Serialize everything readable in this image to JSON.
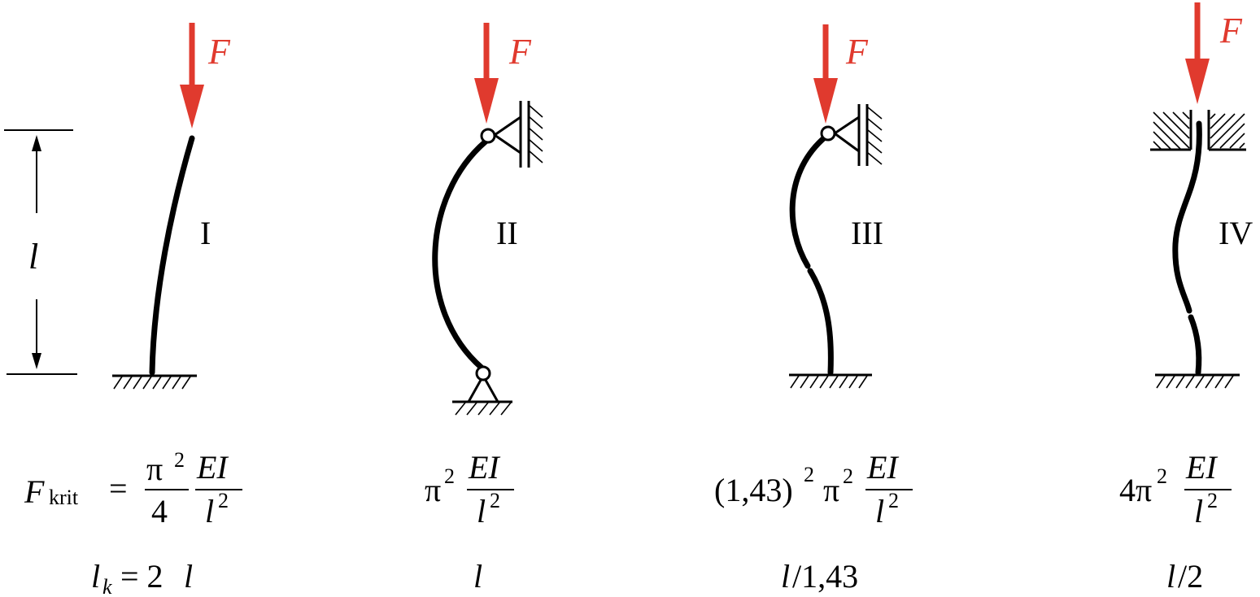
{
  "force_label": "F",
  "length_label": "l",
  "colors": {
    "force": "#e03a2e",
    "ink": "#000000"
  },
  "cases": [
    {
      "id": "I",
      "numeral": "I",
      "formula": {
        "lhs_symbol": "F",
        "lhs_subscript": "krit",
        "equals": "=",
        "coef_num": "π",
        "coef_num_exp": "2",
        "coef_den": "4",
        "frac_num": "EI",
        "frac_den": "l",
        "frac_den_exp": "2"
      },
      "lk": {
        "symbol": "l",
        "subscript": "k",
        "rest": "= 2 ",
        "var": "l"
      }
    },
    {
      "id": "II",
      "numeral": "II",
      "formula": {
        "pi": "π",
        "pi_exp": "2",
        "frac_num": "EI",
        "frac_den": "l",
        "frac_den_exp": "2"
      },
      "lk": {
        "var": "l"
      }
    },
    {
      "id": "III",
      "numeral": "III",
      "formula": {
        "prefix": "(1,43)",
        "prefix_exp": "2",
        "pi": "π",
        "pi_exp": "2",
        "frac_num": "EI",
        "frac_den": "l",
        "frac_den_exp": "2"
      },
      "lk": {
        "var": "l",
        "rest": "/1,43"
      }
    },
    {
      "id": "IV",
      "numeral": "IV",
      "formula": {
        "prefix": "4π",
        "prefix_exp": "2",
        "frac_num": "EI",
        "frac_den": "l",
        "frac_den_exp": "2"
      },
      "lk": {
        "var": "l",
        "rest": "/2"
      }
    }
  ]
}
